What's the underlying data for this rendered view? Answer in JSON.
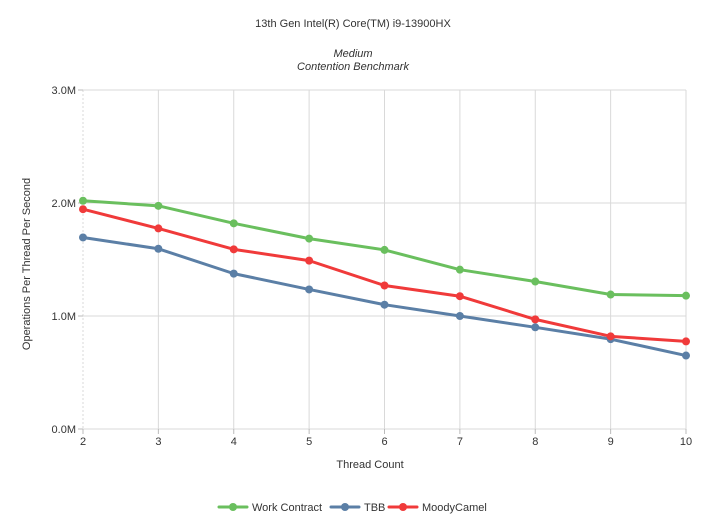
{
  "chart_data": {
    "type": "line",
    "title": "13th Gen Intel(R) Core(TM) i9-13900HX",
    "subtitle_lines": [
      "Medium",
      "Contention Benchmark"
    ],
    "xlabel": "Thread Count",
    "ylabel": "Operations Per Thread Per Second",
    "x": [
      2,
      3,
      4,
      5,
      6,
      7,
      8,
      9,
      10
    ],
    "ylim": [
      0,
      3000000
    ],
    "yticks": [
      0,
      1000000,
      2000000,
      3000000
    ],
    "ytick_labels": [
      "0.0M",
      "1.0M",
      "2.0M",
      "3.0M"
    ],
    "grid": true,
    "legend_position": "bottom",
    "series": [
      {
        "name": "Work Contract",
        "color": "#6abf5e",
        "values": [
          2020000,
          1975000,
          1820000,
          1685000,
          1585000,
          1410000,
          1305000,
          1190000,
          1180000
        ]
      },
      {
        "name": "TBB",
        "color": "#5b7fa6",
        "values": [
          1695000,
          1595000,
          1375000,
          1235000,
          1100000,
          1000000,
          900000,
          795000,
          650000
        ]
      },
      {
        "name": "MoodyCamel",
        "color": "#f03a3a",
        "values": [
          1945000,
          1775000,
          1590000,
          1490000,
          1270000,
          1175000,
          970000,
          820000,
          775000
        ]
      }
    ]
  }
}
